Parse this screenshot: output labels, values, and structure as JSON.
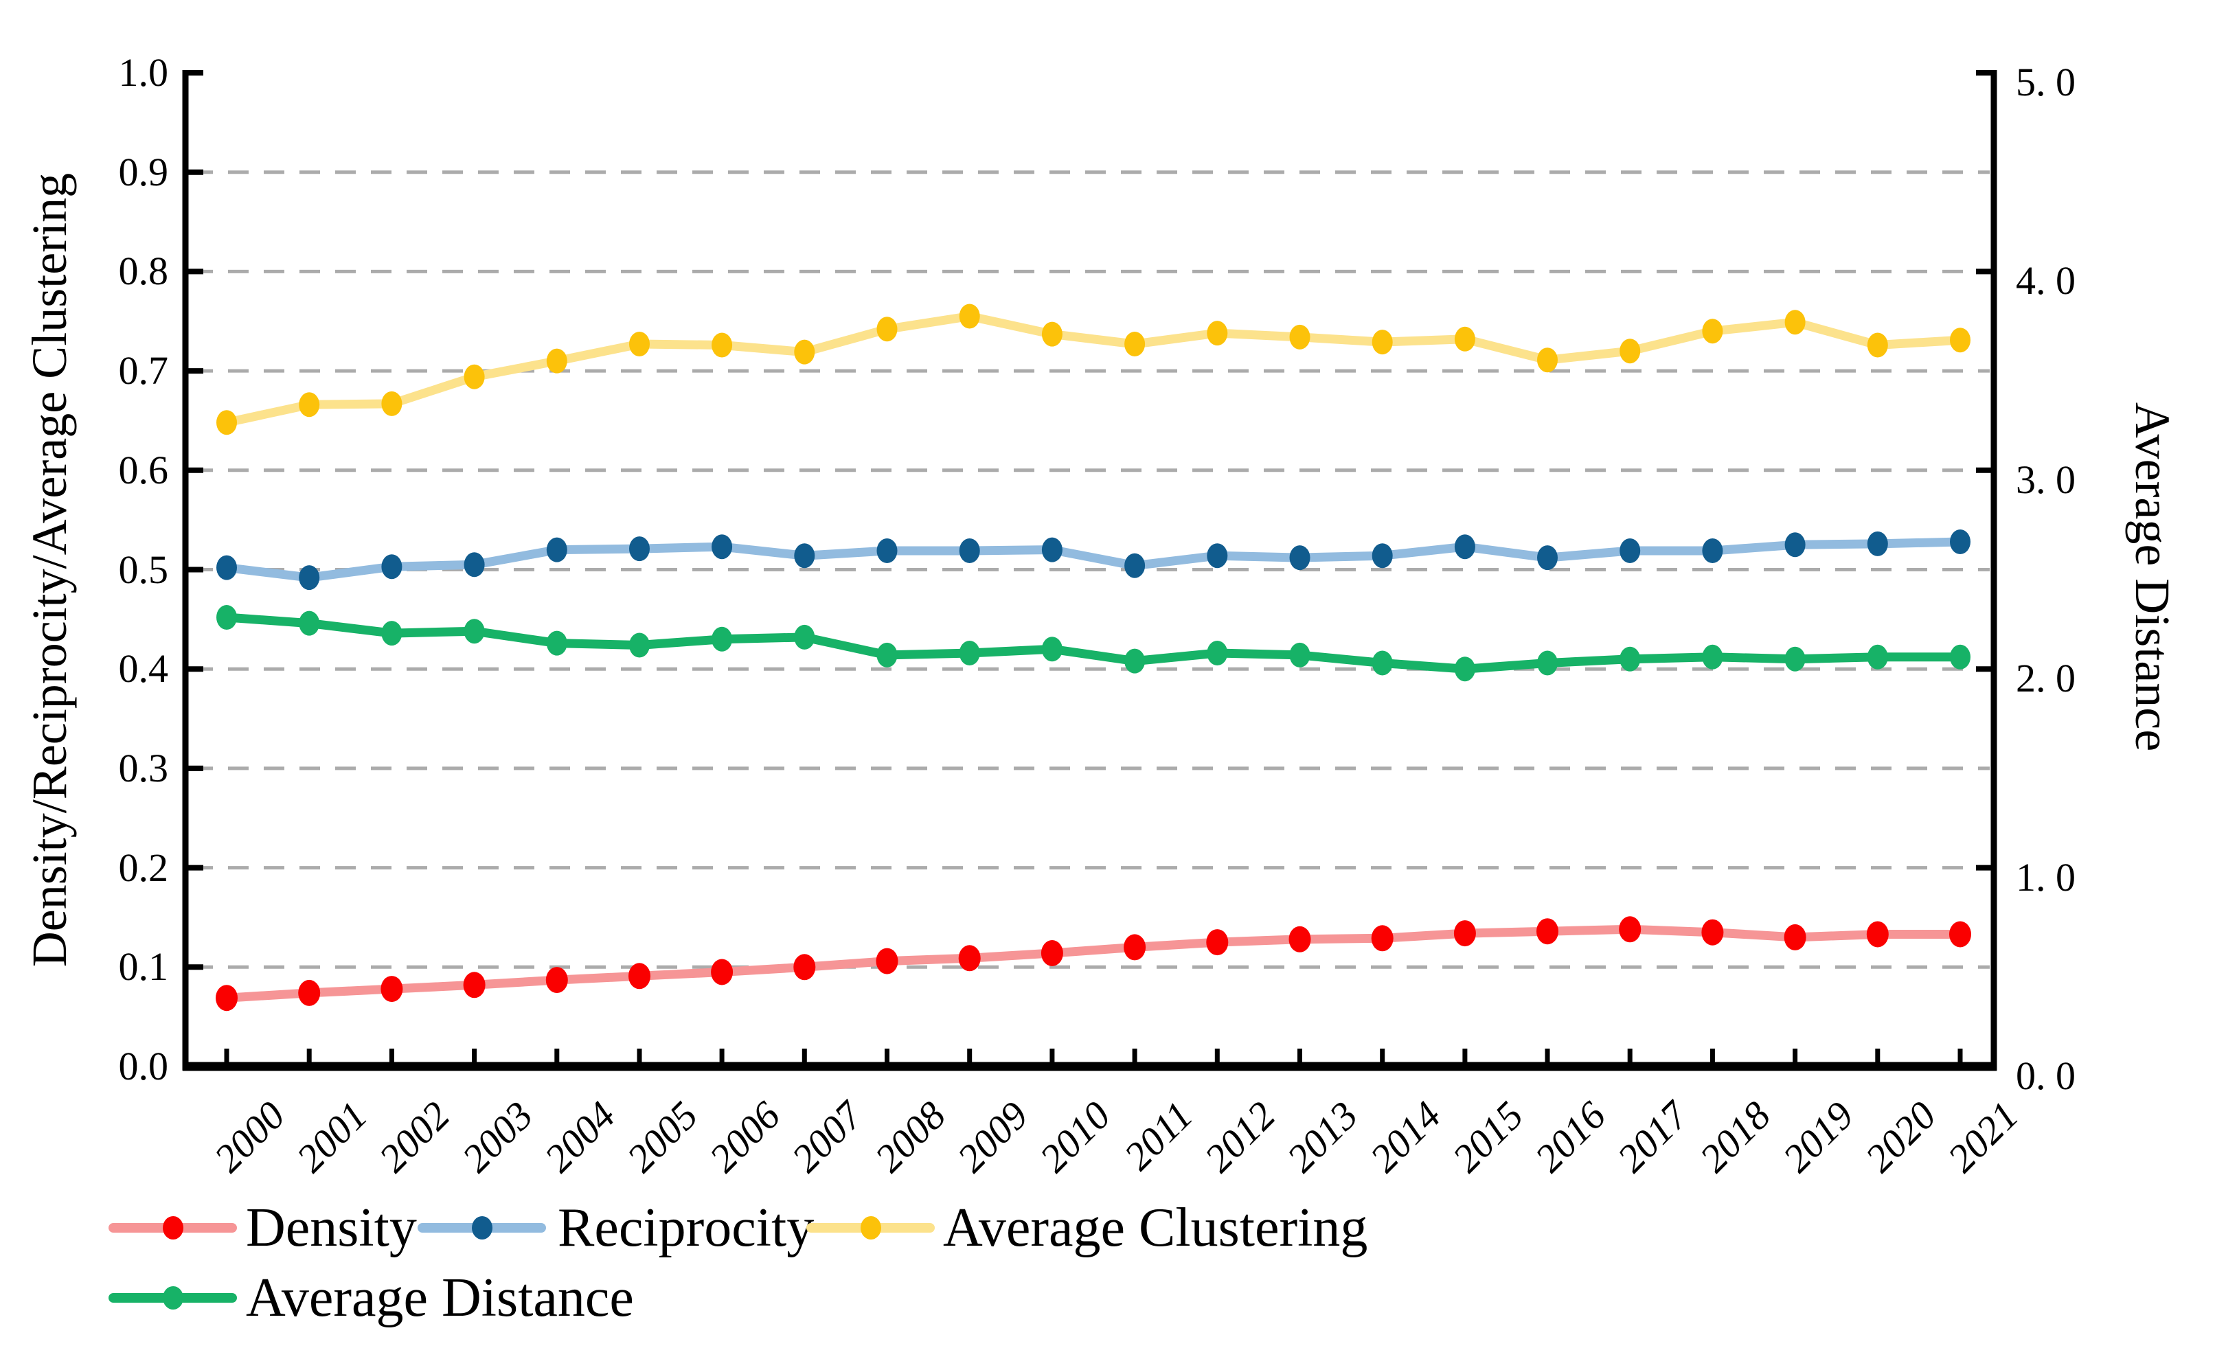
{
  "chart_data": {
    "type": "line",
    "title": "",
    "x_categories": [
      "2000",
      "2001",
      "2002",
      "2003",
      "2004",
      "2005",
      "2006",
      "2007",
      "2008",
      "2009",
      "2010",
      "2011",
      "2012",
      "2013",
      "2014",
      "2015",
      "2016",
      "2017",
      "2018",
      "2019",
      "2020",
      "2021"
    ],
    "left_axis": {
      "label": "Density/Reciprocity/Average Clustering",
      "range": [
        0.0,
        1.0
      ],
      "tick_step": 0.1,
      "tick_labels": [
        "0.0",
        "0.1",
        "0.2",
        "0.3",
        "0.4",
        "0.5",
        "0.6",
        "0.7",
        "0.8",
        "0.9",
        "1.0"
      ],
      "grid": true
    },
    "right_axis": {
      "label": "Average Distance",
      "range": [
        0.0,
        5.0
      ],
      "tick_step": 1.0,
      "tick_labels": [
        "0. 0",
        "1. 0",
        "2. 0",
        "3. 0",
        "4. 0",
        "5. 0"
      ]
    },
    "grid_style": {
      "color": "#ABABAB",
      "dash": "horizontal dashed at each left-axis 0.1 from 0.1 to 0.9"
    },
    "axis_color": "#000000",
    "series": [
      {
        "name": "Density",
        "axis": "left",
        "line_color": "#F69596",
        "marker_color": "#FA0000",
        "values": [
          0.069,
          0.074,
          0.078,
          0.082,
          0.087,
          0.091,
          0.095,
          0.1,
          0.106,
          0.109,
          0.114,
          0.12,
          0.125,
          0.128,
          0.129,
          0.134,
          0.136,
          0.138,
          0.135,
          0.13,
          0.133,
          0.133
        ]
      },
      {
        "name": "Reciprocity",
        "axis": "left",
        "line_color": "#92BBDF",
        "marker_color": "#115C8E",
        "values": [
          0.502,
          0.492,
          0.503,
          0.505,
          0.52,
          0.521,
          0.523,
          0.514,
          0.519,
          0.519,
          0.52,
          0.504,
          0.514,
          0.512,
          0.514,
          0.523,
          0.512,
          0.519,
          0.519,
          0.525,
          0.526,
          0.528
        ]
      },
      {
        "name": "Average Clustering",
        "axis": "left",
        "line_color": "#FCE28C",
        "marker_color": "#FCC20A",
        "values": [
          0.648,
          0.666,
          0.667,
          0.694,
          0.71,
          0.727,
          0.726,
          0.719,
          0.742,
          0.755,
          0.737,
          0.727,
          0.738,
          0.734,
          0.729,
          0.732,
          0.711,
          0.72,
          0.74,
          0.749,
          0.726,
          0.731
        ]
      },
      {
        "name": "Average Distance",
        "axis": "right",
        "line_color": "#17B267",
        "marker_color": "#17B267",
        "values": [
          2.26,
          2.23,
          2.18,
          2.19,
          2.13,
          2.12,
          2.15,
          2.16,
          2.07,
          2.08,
          2.1,
          2.04,
          2.08,
          2.07,
          2.03,
          2.0,
          2.03,
          2.05,
          2.06,
          2.05,
          2.06,
          2.06
        ]
      }
    ],
    "legend": {
      "position": "below-left",
      "rows": [
        [
          "Density",
          "Reciprocity",
          "Average Clustering"
        ],
        [
          "Average Distance"
        ]
      ]
    }
  }
}
